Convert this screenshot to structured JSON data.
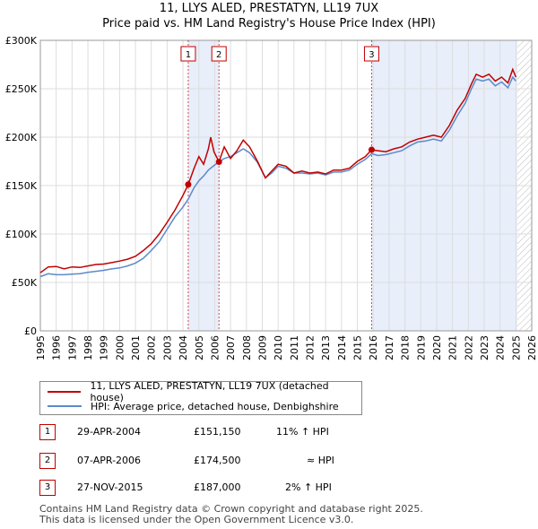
{
  "title": "11, LLYS ALED, PRESTATYN, LL19 7UX",
  "subtitle": "Price paid vs. HM Land Registry's House Price Index (HPI)",
  "chart_data": {
    "type": "line",
    "x_unit": "year",
    "xlim": [
      1995,
      2026
    ],
    "ylim": [
      0,
      300000
    ],
    "y_ticks": [
      {
        "value": 0,
        "label": "£0"
      },
      {
        "value": 50000,
        "label": "£50K"
      },
      {
        "value": 100000,
        "label": "£100K"
      },
      {
        "value": 150000,
        "label": "£150K"
      },
      {
        "value": 200000,
        "label": "£200K"
      },
      {
        "value": 250000,
        "label": "£250K"
      },
      {
        "value": 300000,
        "label": "£300K"
      }
    ],
    "x_ticks": [
      "1995",
      "1996",
      "1997",
      "1998",
      "1999",
      "2000",
      "2001",
      "2002",
      "2003",
      "2004",
      "2005",
      "2006",
      "2007",
      "2008",
      "2009",
      "2010",
      "2011",
      "2012",
      "2013",
      "2014",
      "2015",
      "2016",
      "2017",
      "2018",
      "2019",
      "2020",
      "2021",
      "2022",
      "2023",
      "2024",
      "2025",
      "2026"
    ],
    "grid": true,
    "shaded_ranges": [
      [
        2004.33,
        2006.27
      ],
      [
        2015.9,
        2025.1
      ]
    ],
    "forecast_start": 2025.1,
    "series": [
      {
        "name": "11, LLYS ALED, PRESTATYN, LL19 7UX (detached house)",
        "color": "#c00000",
        "points": [
          [
            1995.0,
            60000
          ],
          [
            1995.5,
            66000
          ],
          [
            1996.0,
            66500
          ],
          [
            1996.5,
            64000
          ],
          [
            1997.0,
            66000
          ],
          [
            1997.5,
            65500
          ],
          [
            1998.0,
            67000
          ],
          [
            1998.5,
            68500
          ],
          [
            1999.0,
            69000
          ],
          [
            1999.5,
            70500
          ],
          [
            2000.0,
            72000
          ],
          [
            2000.5,
            74000
          ],
          [
            2001.0,
            77000
          ],
          [
            2001.5,
            83000
          ],
          [
            2002.0,
            90000
          ],
          [
            2002.5,
            100000
          ],
          [
            2003.0,
            112000
          ],
          [
            2003.5,
            125000
          ],
          [
            2004.0,
            140000
          ],
          [
            2004.33,
            151150
          ],
          [
            2004.7,
            168000
          ],
          [
            2005.0,
            180000
          ],
          [
            2005.3,
            172000
          ],
          [
            2005.6,
            188000
          ],
          [
            2005.75,
            200000
          ],
          [
            2005.95,
            185000
          ],
          [
            2006.27,
            174500
          ],
          [
            2006.6,
            190000
          ],
          [
            2007.0,
            178000
          ],
          [
            2007.4,
            186000
          ],
          [
            2007.8,
            197000
          ],
          [
            2008.2,
            190000
          ],
          [
            2008.7,
            175000
          ],
          [
            2009.2,
            158000
          ],
          [
            2009.6,
            165000
          ],
          [
            2010.0,
            172000
          ],
          [
            2010.5,
            170000
          ],
          [
            2011.0,
            163000
          ],
          [
            2011.5,
            165000
          ],
          [
            2012.0,
            163000
          ],
          [
            2012.5,
            164000
          ],
          [
            2013.0,
            162000
          ],
          [
            2013.5,
            166000
          ],
          [
            2014.0,
            166000
          ],
          [
            2014.5,
            168000
          ],
          [
            2015.0,
            175000
          ],
          [
            2015.5,
            180000
          ],
          [
            2015.9,
            187000
          ],
          [
            2016.3,
            186000
          ],
          [
            2016.8,
            185000
          ],
          [
            2017.3,
            188000
          ],
          [
            2017.8,
            190000
          ],
          [
            2018.3,
            195000
          ],
          [
            2018.8,
            198000
          ],
          [
            2019.3,
            200000
          ],
          [
            2019.8,
            202000
          ],
          [
            2020.3,
            200000
          ],
          [
            2020.8,
            212000
          ],
          [
            2021.3,
            228000
          ],
          [
            2021.8,
            240000
          ],
          [
            2022.2,
            255000
          ],
          [
            2022.5,
            265000
          ],
          [
            2022.9,
            262000
          ],
          [
            2023.3,
            265000
          ],
          [
            2023.7,
            258000
          ],
          [
            2024.1,
            262000
          ],
          [
            2024.5,
            256000
          ],
          [
            2024.8,
            270000
          ],
          [
            2025.0,
            262000
          ]
        ]
      },
      {
        "name": "HPI: Average price, detached house, Denbighshire",
        "color": "#5b8ac9",
        "points": [
          [
            1995.0,
            56000
          ],
          [
            1995.5,
            59000
          ],
          [
            1996.0,
            58000
          ],
          [
            1996.5,
            58000
          ],
          [
            1997.0,
            58500
          ],
          [
            1997.5,
            59000
          ],
          [
            1998.0,
            60500
          ],
          [
            1998.5,
            61500
          ],
          [
            1999.0,
            62500
          ],
          [
            1999.5,
            64000
          ],
          [
            2000.0,
            65000
          ],
          [
            2000.5,
            67000
          ],
          [
            2001.0,
            70000
          ],
          [
            2001.5,
            75000
          ],
          [
            2002.0,
            83000
          ],
          [
            2002.5,
            92000
          ],
          [
            2003.0,
            105000
          ],
          [
            2003.5,
            118000
          ],
          [
            2004.0,
            128000
          ],
          [
            2004.33,
            136000
          ],
          [
            2004.7,
            148000
          ],
          [
            2005.0,
            155000
          ],
          [
            2005.3,
            160000
          ],
          [
            2005.6,
            166000
          ],
          [
            2005.9,
            170000
          ],
          [
            2006.27,
            174500
          ],
          [
            2006.6,
            178000
          ],
          [
            2007.0,
            180000
          ],
          [
            2007.4,
            184000
          ],
          [
            2007.8,
            188000
          ],
          [
            2008.2,
            184000
          ],
          [
            2008.7,
            174000
          ],
          [
            2009.2,
            158000
          ],
          [
            2009.6,
            163000
          ],
          [
            2010.0,
            170000
          ],
          [
            2010.5,
            168000
          ],
          [
            2011.0,
            163000
          ],
          [
            2011.5,
            163000
          ],
          [
            2012.0,
            162000
          ],
          [
            2012.5,
            163000
          ],
          [
            2013.0,
            161000
          ],
          [
            2013.5,
            164000
          ],
          [
            2014.0,
            164000
          ],
          [
            2014.5,
            166000
          ],
          [
            2015.0,
            172000
          ],
          [
            2015.5,
            177000
          ],
          [
            2015.9,
            183000
          ],
          [
            2016.3,
            181000
          ],
          [
            2016.8,
            182000
          ],
          [
            2017.3,
            184000
          ],
          [
            2017.8,
            186000
          ],
          [
            2018.3,
            191000
          ],
          [
            2018.8,
            195000
          ],
          [
            2019.3,
            196000
          ],
          [
            2019.8,
            198000
          ],
          [
            2020.3,
            196000
          ],
          [
            2020.8,
            207000
          ],
          [
            2021.3,
            222000
          ],
          [
            2021.8,
            235000
          ],
          [
            2022.2,
            250000
          ],
          [
            2022.5,
            260000
          ],
          [
            2022.9,
            258000
          ],
          [
            2023.3,
            260000
          ],
          [
            2023.7,
            253000
          ],
          [
            2024.1,
            257000
          ],
          [
            2024.5,
            251000
          ],
          [
            2024.8,
            262000
          ],
          [
            2025.0,
            258000
          ]
        ]
      }
    ],
    "markers": [
      {
        "label": "1",
        "x": 2004.33,
        "y": 151150
      },
      {
        "label": "2",
        "x": 2006.27,
        "y": 174500
      },
      {
        "label": "3",
        "x": 2015.9,
        "y": 187000
      }
    ]
  },
  "legend": {
    "property_label": "11, LLYS ALED, PRESTATYN, LL19 7UX (detached house)",
    "hpi_label": "HPI: Average price, detached house, Denbighshire"
  },
  "transactions": [
    {
      "num": "1",
      "date": "29-APR-2004",
      "price": "£151,150",
      "vs_hpi": "11% ↑ HPI"
    },
    {
      "num": "2",
      "date": "07-APR-2006",
      "price": "£174,500",
      "vs_hpi": "≈ HPI"
    },
    {
      "num": "3",
      "date": "27-NOV-2015",
      "price": "£187,000",
      "vs_hpi": "2% ↑ HPI"
    }
  ],
  "footer": {
    "line1": "Contains HM Land Registry data © Crown copyright and database right 2025.",
    "line2": "This data is licensed under the Open Government Licence v3.0."
  },
  "colors": {
    "property": "#c00000",
    "hpi": "#5b8ac9",
    "shade": "#e8eefa",
    "grid": "#dddddd"
  }
}
